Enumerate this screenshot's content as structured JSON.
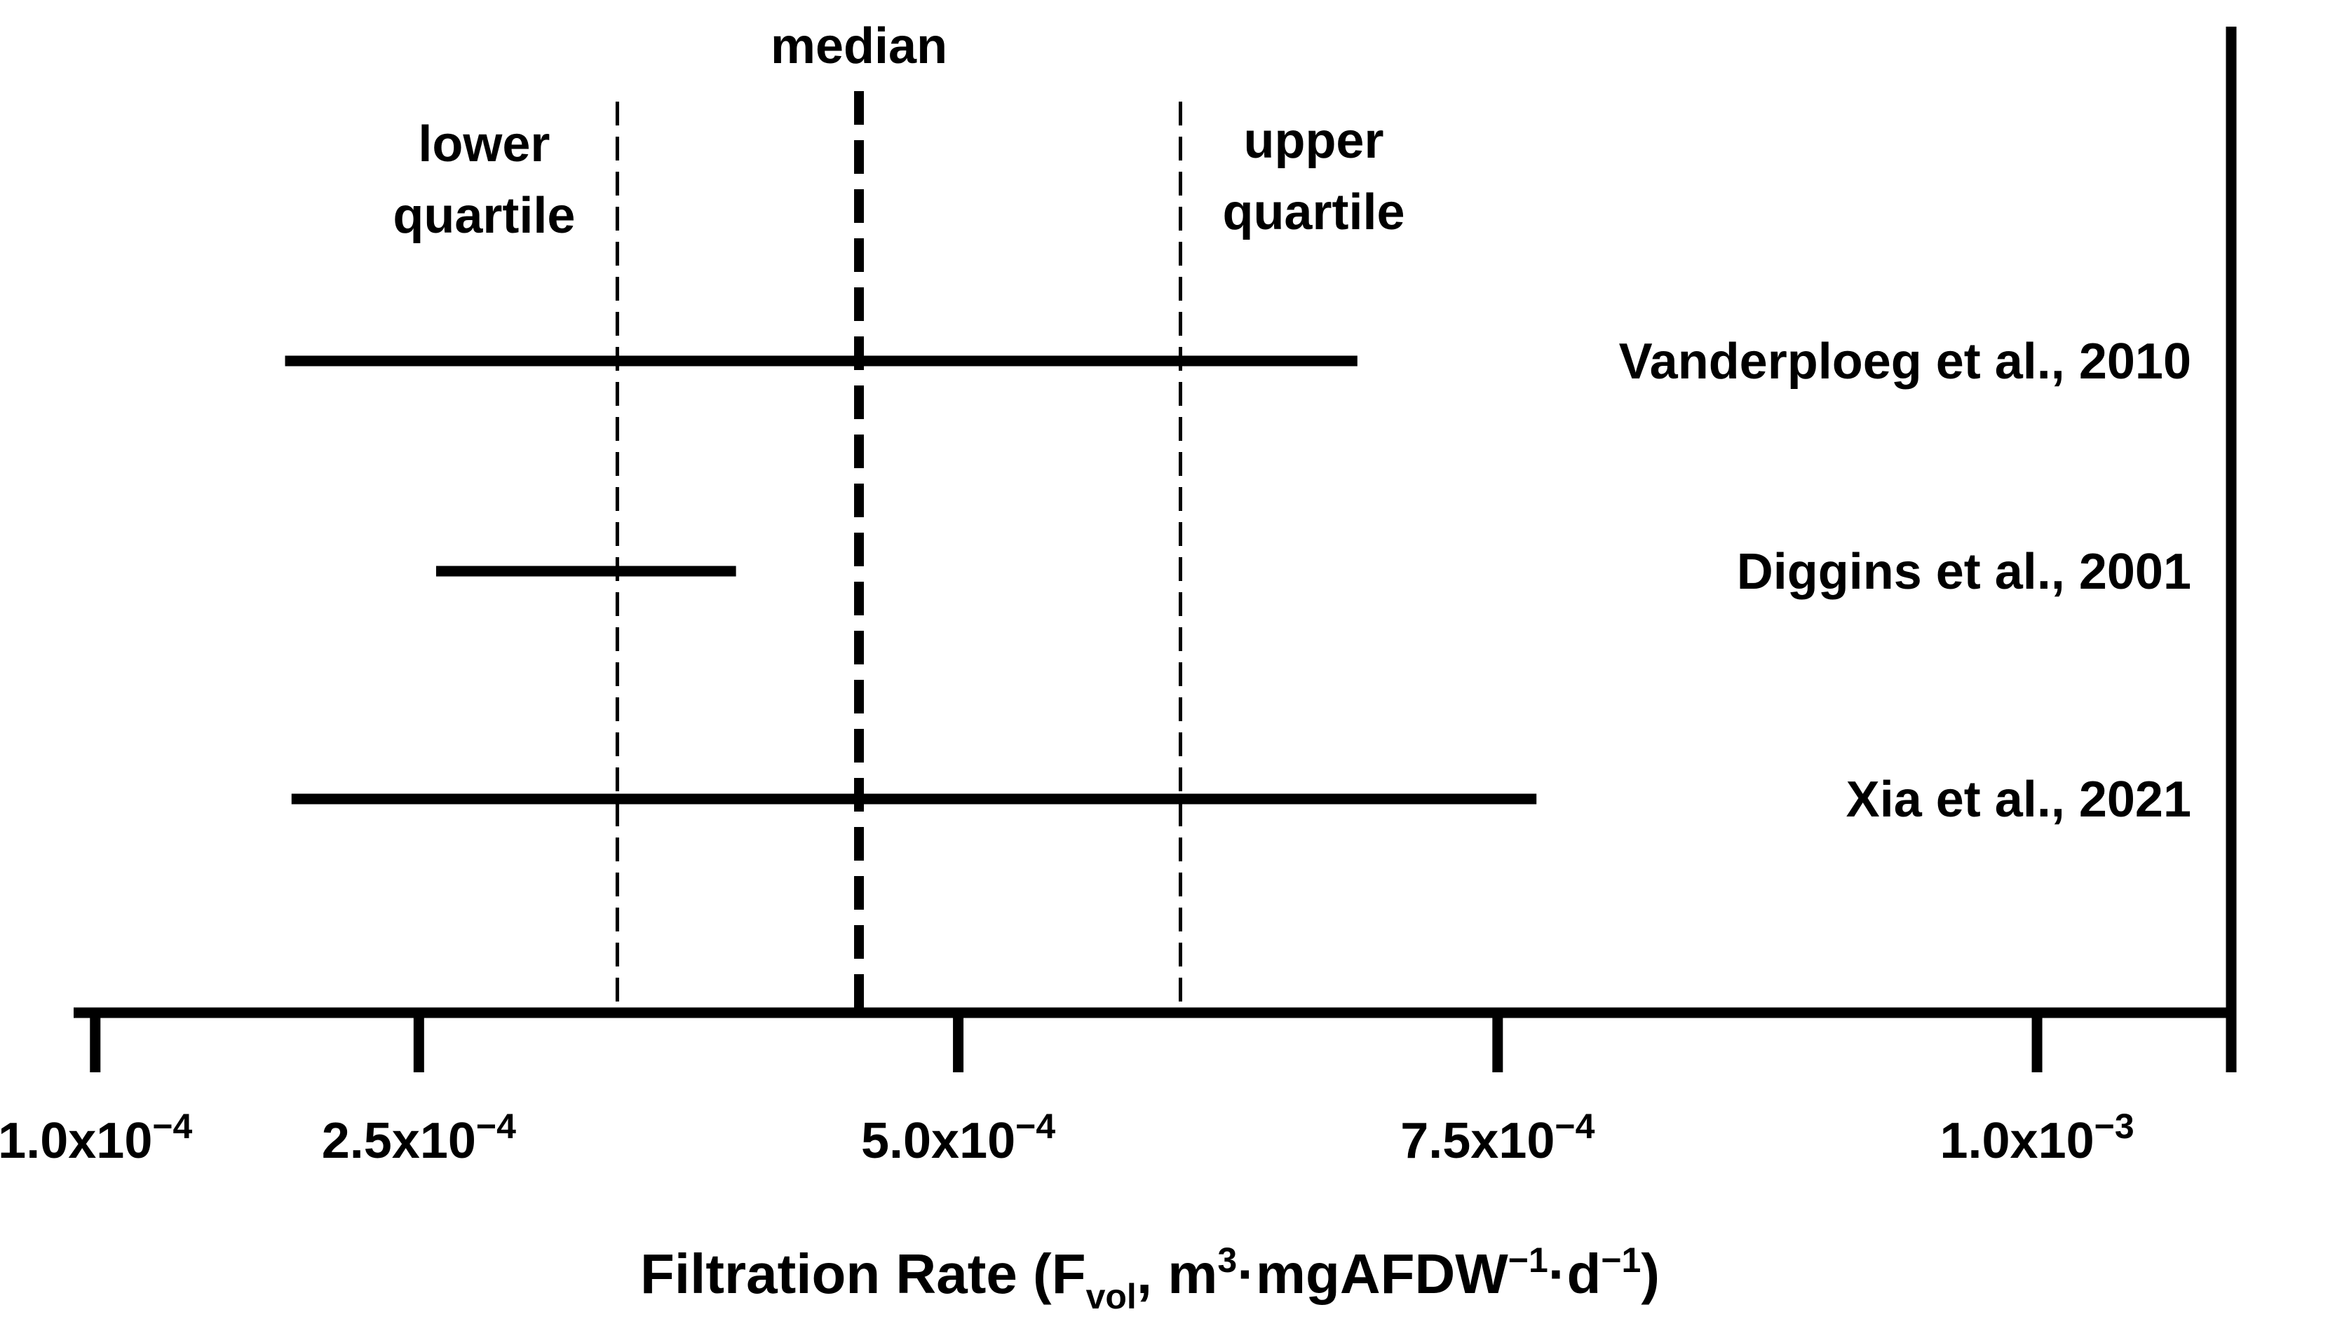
{
  "chart_data": {
    "type": "range",
    "xlabel": {
      "main": "Filtration Rate (F",
      "sub": "vol",
      "mid": ", m",
      "sup1": "3",
      "mid2": "·mgAFDW",
      "sup2": "−1",
      "mid3": "·d",
      "sup3": "−1",
      "end": ")"
    },
    "xlim": [
      9e-05,
      0.00109
    ],
    "ticks": [
      {
        "value": 0.0001,
        "label": "1.0x10",
        "exp": "−4"
      },
      {
        "value": 0.00025,
        "label": "2.5x10",
        "exp": "−4"
      },
      {
        "value": 0.0005,
        "label": "5.0x10",
        "exp": "−4"
      },
      {
        "value": 0.00075,
        "label": "7.5x10",
        "exp": "−4"
      },
      {
        "value": 0.001,
        "label": "1.0x10",
        "exp": "−3"
      }
    ],
    "reference_lines": [
      {
        "name": "lower-quartile",
        "value": 0.000342,
        "lines": [
          "lower",
          "quartile"
        ],
        "style": "dashed-thin"
      },
      {
        "name": "median",
        "value": 0.000454,
        "lines": [
          "median"
        ],
        "style": "dashed-thick"
      },
      {
        "name": "upper-quartile",
        "value": 0.000603,
        "lines": [
          "upper",
          "quartile"
        ],
        "style": "dashed-thin"
      }
    ],
    "studies": [
      {
        "name": "Vanderploeg et al., 2010",
        "min": 0.000188,
        "max": 0.000685
      },
      {
        "name": "Diggins et al., 2001",
        "min": 0.000258,
        "max": 0.000397
      },
      {
        "name": "Xia et al., 2021",
        "min": 0.000191,
        "max": 0.000768
      }
    ]
  }
}
